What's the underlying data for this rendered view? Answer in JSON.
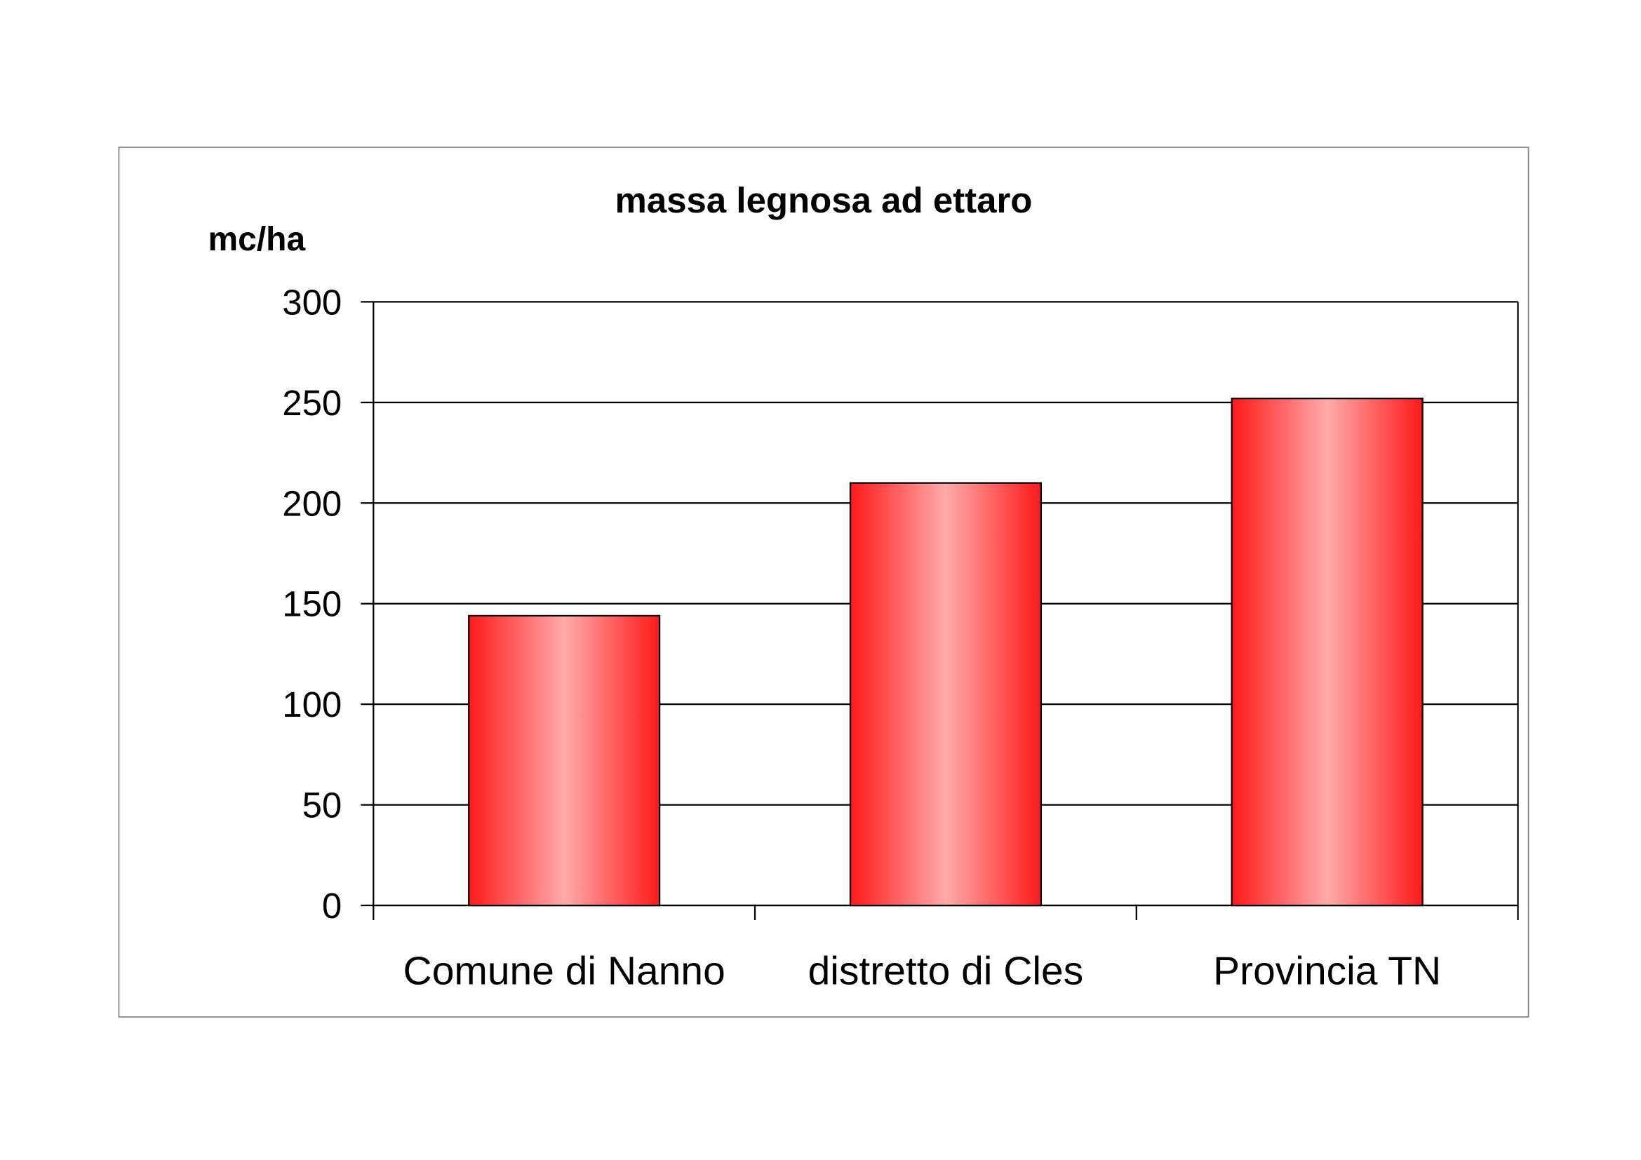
{
  "chart_data": {
    "type": "bar",
    "title": "massa legnosa ad ettaro",
    "y_label": "mc/ha",
    "categories": [
      "Comune di Nanno",
      "distretto di Cles",
      "Provincia TN"
    ],
    "values": [
      144,
      210,
      252
    ],
    "color": "#ff1a1a",
    "ylim": [
      0,
      300
    ],
    "yticks": [
      0,
      50,
      100,
      150,
      200,
      250,
      300
    ],
    "grid": true
  }
}
